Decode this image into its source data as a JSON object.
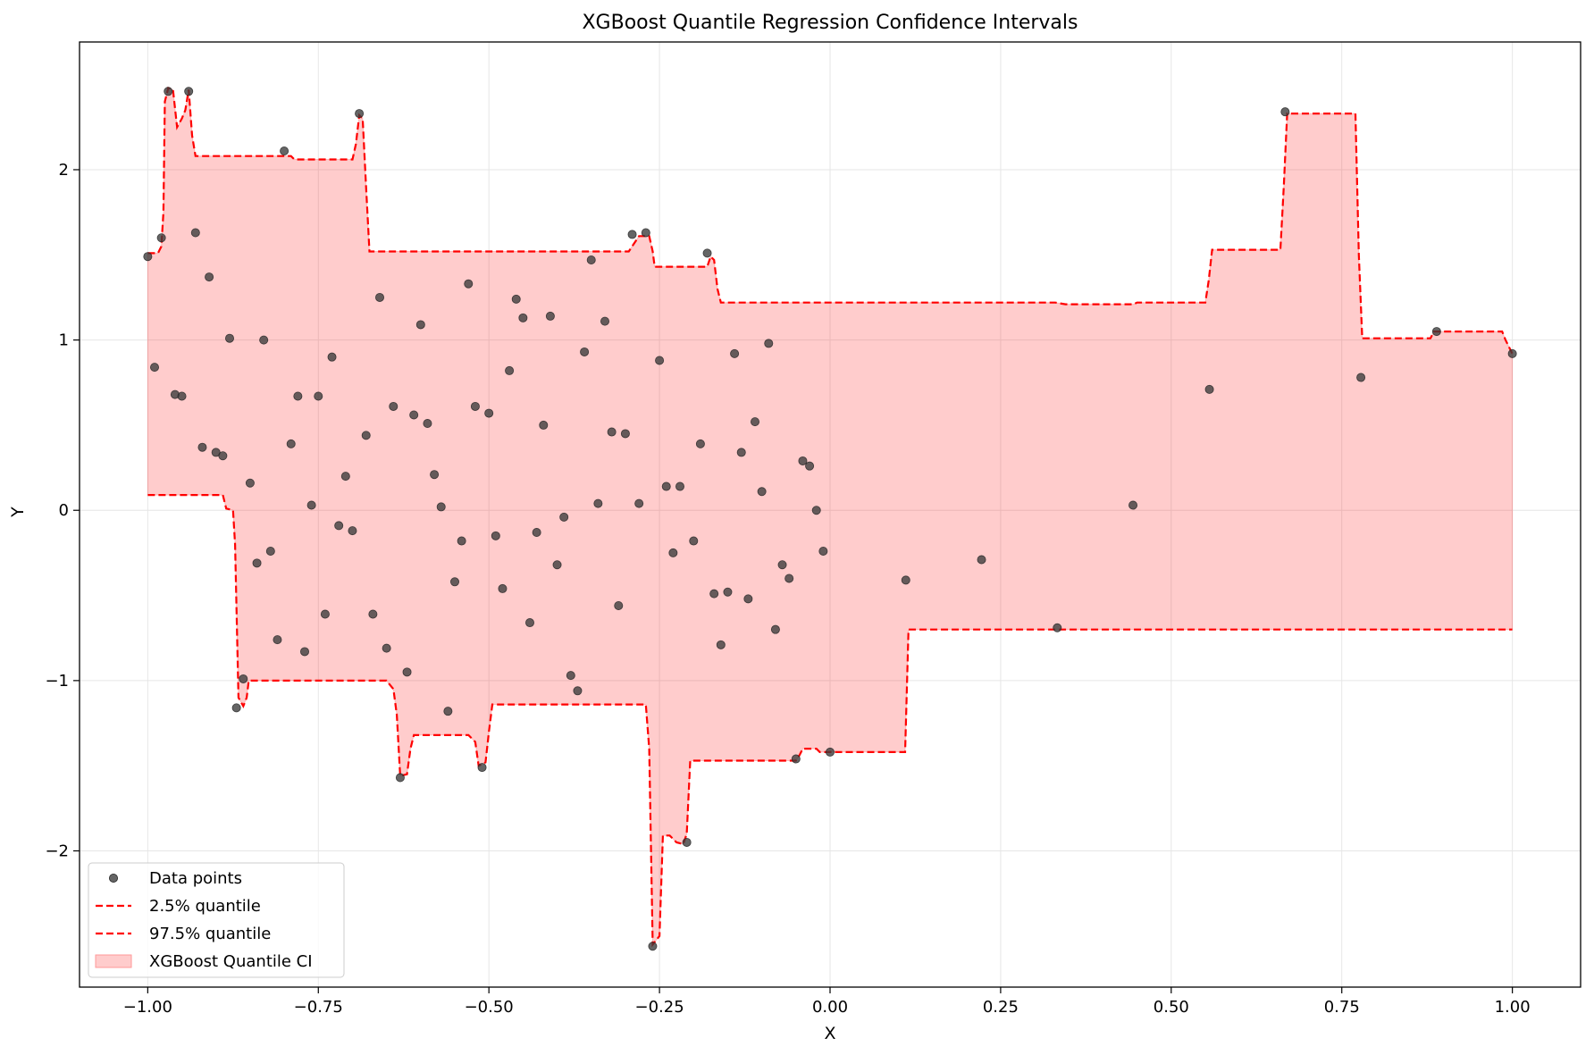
{
  "chart_data": {
    "type": "scatter",
    "title": "XGBoost Quantile Regression Confidence Intervals",
    "xlabel": "X",
    "ylabel": "Y",
    "xlim": [
      -1.1,
      1.1
    ],
    "ylim": [
      -2.8,
      2.75
    ],
    "xticks": [
      -1.0,
      -0.75,
      -0.5,
      -0.25,
      0.0,
      0.25,
      0.5,
      0.75,
      1.0
    ],
    "xtick_labels": [
      "−1.00",
      "−0.75",
      "−0.50",
      "−0.25",
      "0.00",
      "0.25",
      "0.50",
      "0.75",
      "1.00"
    ],
    "yticks": [
      -2,
      -1,
      0,
      1,
      2
    ],
    "ytick_labels": [
      "−2",
      "−1",
      "0",
      "1",
      "2"
    ],
    "grid": true,
    "legend_position": "lower-left",
    "legend": [
      {
        "label": "Data points",
        "kind": "marker",
        "color": "#3a3a3a"
      },
      {
        "label": "2.5% quantile",
        "kind": "dashed-line",
        "color": "#ff0000"
      },
      {
        "label": "97.5% quantile",
        "kind": "dashed-line",
        "color": "#ff0000"
      },
      {
        "label": "XGBoost Quantile CI",
        "kind": "patch",
        "color": "#ff9999"
      }
    ],
    "colors": {
      "points": "#3a3a3a",
      "quantile_line": "#ff0000",
      "band_fill": "#ff0000",
      "band_opacity": 0.2
    },
    "series": [
      {
        "name": "Data points",
        "kind": "scatter",
        "points": [
          [
            -1.0,
            1.49
          ],
          [
            -0.99,
            0.84
          ],
          [
            -0.98,
            1.6
          ],
          [
            -0.97,
            2.46
          ],
          [
            -0.96,
            0.68
          ],
          [
            -0.95,
            0.67
          ],
          [
            -0.94,
            2.46
          ],
          [
            -0.93,
            1.63
          ],
          [
            -0.92,
            0.37
          ],
          [
            -0.91,
            1.37
          ],
          [
            -0.9,
            0.34
          ],
          [
            -0.89,
            0.32
          ],
          [
            -0.88,
            1.01
          ],
          [
            -0.87,
            -1.16
          ],
          [
            -0.86,
            -0.99
          ],
          [
            -0.85,
            0.16
          ],
          [
            -0.84,
            -0.31
          ],
          [
            -0.83,
            1.0
          ],
          [
            -0.82,
            -0.24
          ],
          [
            -0.81,
            -0.76
          ],
          [
            -0.8,
            2.11
          ],
          [
            -0.79,
            0.39
          ],
          [
            -0.78,
            0.67
          ],
          [
            -0.77,
            -0.83
          ],
          [
            -0.76,
            0.03
          ],
          [
            -0.75,
            0.67
          ],
          [
            -0.74,
            -0.61
          ],
          [
            -0.73,
            0.9
          ],
          [
            -0.72,
            -0.09
          ],
          [
            -0.71,
            0.2
          ],
          [
            -0.7,
            -0.12
          ],
          [
            -0.69,
            2.33
          ],
          [
            -0.68,
            0.44
          ],
          [
            -0.67,
            -0.61
          ],
          [
            -0.66,
            1.25
          ],
          [
            -0.65,
            -0.81
          ],
          [
            -0.64,
            0.61
          ],
          [
            -0.63,
            -1.57
          ],
          [
            -0.62,
            -0.95
          ],
          [
            -0.61,
            0.56
          ],
          [
            -0.6,
            1.09
          ],
          [
            -0.59,
            0.51
          ],
          [
            -0.58,
            0.21
          ],
          [
            -0.57,
            0.02
          ],
          [
            -0.56,
            -1.18
          ],
          [
            -0.55,
            -0.42
          ],
          [
            -0.54,
            -0.18
          ],
          [
            -0.53,
            1.33
          ],
          [
            -0.52,
            0.61
          ],
          [
            -0.51,
            -1.51
          ],
          [
            -0.5,
            0.57
          ],
          [
            -0.49,
            -0.15
          ],
          [
            -0.48,
            -0.46
          ],
          [
            -0.47,
            0.82
          ],
          [
            -0.46,
            1.24
          ],
          [
            -0.45,
            1.13
          ],
          [
            -0.44,
            -0.66
          ],
          [
            -0.43,
            -0.13
          ],
          [
            -0.42,
            0.5
          ],
          [
            -0.41,
            1.14
          ],
          [
            -0.4,
            -0.32
          ],
          [
            -0.39,
            -0.04
          ],
          [
            -0.38,
            -0.97
          ],
          [
            -0.37,
            -1.06
          ],
          [
            -0.36,
            0.93
          ],
          [
            -0.35,
            1.47
          ],
          [
            -0.34,
            0.04
          ],
          [
            -0.33,
            1.11
          ],
          [
            -0.32,
            0.46
          ],
          [
            -0.31,
            -0.56
          ],
          [
            -0.3,
            0.45
          ],
          [
            -0.29,
            1.62
          ],
          [
            -0.28,
            0.04
          ],
          [
            -0.27,
            1.63
          ],
          [
            -0.26,
            -2.56
          ],
          [
            -0.25,
            0.88
          ],
          [
            -0.24,
            0.14
          ],
          [
            -0.23,
            -0.25
          ],
          [
            -0.22,
            0.14
          ],
          [
            -0.21,
            -1.95
          ],
          [
            -0.2,
            -0.18
          ],
          [
            -0.19,
            0.39
          ],
          [
            -0.18,
            1.51
          ],
          [
            -0.17,
            -0.49
          ],
          [
            -0.16,
            -0.79
          ],
          [
            -0.15,
            -0.48
          ],
          [
            -0.14,
            0.92
          ],
          [
            -0.13,
            0.34
          ],
          [
            -0.12,
            -0.52
          ],
          [
            -0.11,
            0.52
          ],
          [
            -0.1,
            0.11
          ],
          [
            -0.09,
            0.98
          ],
          [
            -0.08,
            -0.7
          ],
          [
            -0.07,
            -0.32
          ],
          [
            -0.06,
            -0.4
          ],
          [
            -0.05,
            -1.46
          ],
          [
            -0.04,
            0.29
          ],
          [
            -0.03,
            0.26
          ],
          [
            -0.02,
            0.0
          ],
          [
            -0.01,
            -0.24
          ],
          [
            0.0,
            -1.42
          ],
          [
            0.111,
            -0.41
          ],
          [
            0.222,
            -0.29
          ],
          [
            0.333,
            -0.69
          ],
          [
            0.444,
            0.03
          ],
          [
            0.556,
            0.71
          ],
          [
            0.667,
            2.34
          ],
          [
            0.778,
            0.78
          ],
          [
            0.889,
            1.05
          ],
          [
            1.0,
            0.92
          ]
        ]
      },
      {
        "name": "2.5% quantile",
        "kind": "dashed-line",
        "points": [
          [
            -1.0,
            0.09
          ],
          [
            -0.89,
            0.09
          ],
          [
            -0.885,
            0.01
          ],
          [
            -0.875,
            0.0
          ],
          [
            -0.872,
            -0.2
          ],
          [
            -0.867,
            -1.1
          ],
          [
            -0.86,
            -1.15
          ],
          [
            -0.855,
            -1.1
          ],
          [
            -0.852,
            -1.0
          ],
          [
            -0.8,
            -1.0
          ],
          [
            -0.65,
            -1.0
          ],
          [
            -0.64,
            -1.05
          ],
          [
            -0.635,
            -1.2
          ],
          [
            -0.63,
            -1.56
          ],
          [
            -0.62,
            -1.55
          ],
          [
            -0.615,
            -1.4
          ],
          [
            -0.61,
            -1.32
          ],
          [
            -0.53,
            -1.32
          ],
          [
            -0.52,
            -1.36
          ],
          [
            -0.515,
            -1.5
          ],
          [
            -0.505,
            -1.48
          ],
          [
            -0.5,
            -1.3
          ],
          [
            -0.495,
            -1.14
          ],
          [
            -0.27,
            -1.14
          ],
          [
            -0.265,
            -1.4
          ],
          [
            -0.26,
            -2.55
          ],
          [
            -0.25,
            -2.5
          ],
          [
            -0.245,
            -1.91
          ],
          [
            -0.235,
            -1.91
          ],
          [
            -0.225,
            -1.95
          ],
          [
            -0.215,
            -1.96
          ],
          [
            -0.21,
            -1.9
          ],
          [
            -0.205,
            -1.47
          ],
          [
            -0.05,
            -1.47
          ],
          [
            -0.045,
            -1.44
          ],
          [
            -0.04,
            -1.4
          ],
          [
            -0.02,
            -1.4
          ],
          [
            -0.015,
            -1.42
          ],
          [
            0.11,
            -1.42
          ],
          [
            0.115,
            -0.7
          ],
          [
            1.0,
            -0.7
          ]
        ]
      },
      {
        "name": "97.5% quantile",
        "kind": "dashed-line",
        "points": [
          [
            -1.0,
            1.51
          ],
          [
            -0.985,
            1.51
          ],
          [
            -0.98,
            1.55
          ],
          [
            -0.977,
            1.75
          ],
          [
            -0.975,
            2.4
          ],
          [
            -0.97,
            2.48
          ],
          [
            -0.963,
            2.47
          ],
          [
            -0.957,
            2.25
          ],
          [
            -0.95,
            2.3
          ],
          [
            -0.945,
            2.35
          ],
          [
            -0.94,
            2.47
          ],
          [
            -0.935,
            2.2
          ],
          [
            -0.93,
            2.08
          ],
          [
            -0.79,
            2.08
          ],
          [
            -0.785,
            2.06
          ],
          [
            -0.7,
            2.06
          ],
          [
            -0.695,
            2.15
          ],
          [
            -0.69,
            2.32
          ],
          [
            -0.685,
            2.3
          ],
          [
            -0.68,
            1.9
          ],
          [
            -0.675,
            1.52
          ],
          [
            -0.295,
            1.52
          ],
          [
            -0.29,
            1.55
          ],
          [
            -0.28,
            1.61
          ],
          [
            -0.265,
            1.61
          ],
          [
            -0.26,
            1.52
          ],
          [
            -0.257,
            1.43
          ],
          [
            -0.18,
            1.43
          ],
          [
            -0.175,
            1.49
          ],
          [
            -0.17,
            1.47
          ],
          [
            -0.165,
            1.3
          ],
          [
            -0.16,
            1.22
          ],
          [
            0.33,
            1.22
          ],
          [
            0.345,
            1.21
          ],
          [
            0.445,
            1.21
          ],
          [
            0.45,
            1.22
          ],
          [
            0.55,
            1.22
          ],
          [
            0.555,
            1.35
          ],
          [
            0.56,
            1.53
          ],
          [
            0.66,
            1.53
          ],
          [
            0.665,
            1.9
          ],
          [
            0.67,
            2.33
          ],
          [
            0.77,
            2.33
          ],
          [
            0.775,
            1.5
          ],
          [
            0.78,
            1.01
          ],
          [
            0.88,
            1.01
          ],
          [
            0.885,
            1.05
          ],
          [
            0.985,
            1.05
          ],
          [
            0.99,
            1.0
          ],
          [
            1.0,
            0.92
          ]
        ]
      }
    ]
  }
}
